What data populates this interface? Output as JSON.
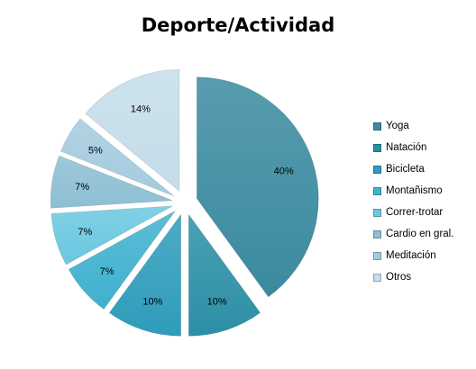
{
  "chart_data": {
    "type": "pie",
    "title": "Deporte/Actividad",
    "categories": [
      "Yoga",
      "Natación",
      "Bicicleta",
      "Montañismo",
      "Correr-trotar",
      "Cardio en gral.",
      "Meditación",
      "Otros"
    ],
    "values": [
      40,
      10,
      10,
      7,
      7,
      7,
      5,
      14
    ],
    "labels": [
      "40%",
      "10%",
      "10%",
      "7%",
      "7%",
      "7%",
      "5%",
      "14%"
    ],
    "colors": [
      "#3a8aa0",
      "#2c8fa6",
      "#2e9cbb",
      "#3fb1cf",
      "#6bc8e0",
      "#8dbfd4",
      "#a4cbde",
      "#c4dde9"
    ],
    "exploded": true,
    "legend_position": "right"
  }
}
